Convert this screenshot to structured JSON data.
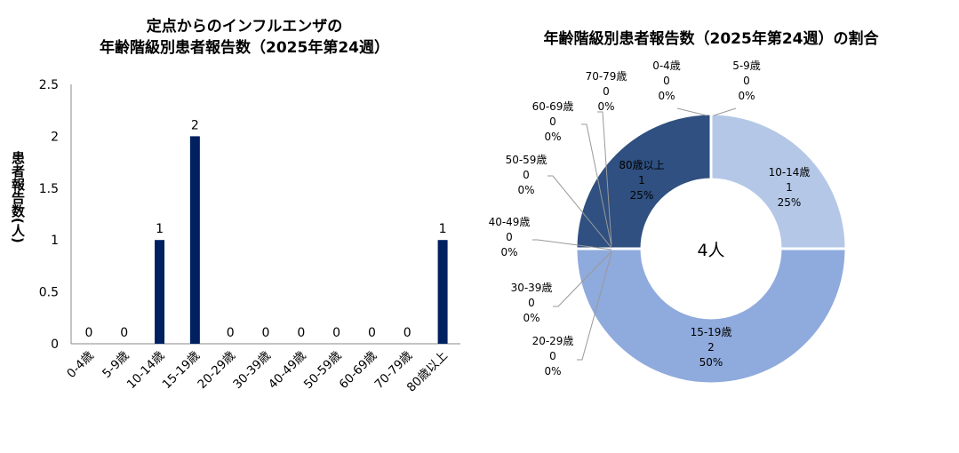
{
  "chart_data": [
    {
      "type": "bar",
      "title": "定点からのインフルエンザの\n年齢階級別患者報告数（2025年第24週）",
      "ylabel": "患者報告数(人)",
      "categories": [
        "0-4歳",
        "5-9歳",
        "10-14歳",
        "15-19歳",
        "20-29歳",
        "30-39歳",
        "40-49歳",
        "50-59歳",
        "60-69歳",
        "70-79歳",
        "80歳以上"
      ],
      "values": [
        0,
        0,
        1,
        2,
        0,
        0,
        0,
        0,
        0,
        0,
        1
      ],
      "yticks": [
        "0",
        "0.5",
        "1",
        "1.5",
        "2",
        "2.5"
      ],
      "ylim": [
        0,
        2.5
      ],
      "grid": false,
      "color": "#002060"
    },
    {
      "type": "pie",
      "title": "年齢階級別患者報告数（2025年第24週）の割合",
      "center_label": "4人",
      "slices": [
        {
          "label": "0-4歳",
          "value": 0,
          "percent": "0%"
        },
        {
          "label": "5-9歳",
          "value": 0,
          "percent": "0%"
        },
        {
          "label": "10-14歳",
          "value": 1,
          "percent": "25%"
        },
        {
          "label": "15-19歳",
          "value": 2,
          "percent": "50%"
        },
        {
          "label": "20-29歳",
          "value": 0,
          "percent": "0%"
        },
        {
          "label": "30-39歳",
          "value": 0,
          "percent": "0%"
        },
        {
          "label": "40-49歳",
          "value": 0,
          "percent": "0%"
        },
        {
          "label": "50-59歳",
          "value": 0,
          "percent": "0%"
        },
        {
          "label": "60-69歳",
          "value": 0,
          "percent": "0%"
        },
        {
          "label": "70-79歳",
          "value": 0,
          "percent": "0%"
        },
        {
          "label": "80歳以上",
          "value": 1,
          "percent": "25%"
        }
      ],
      "colors": {
        "10-14歳": "#B4C7E7",
        "15-19歳": "#8FAADC",
        "80歳以上": "#2F5080"
      }
    }
  ]
}
